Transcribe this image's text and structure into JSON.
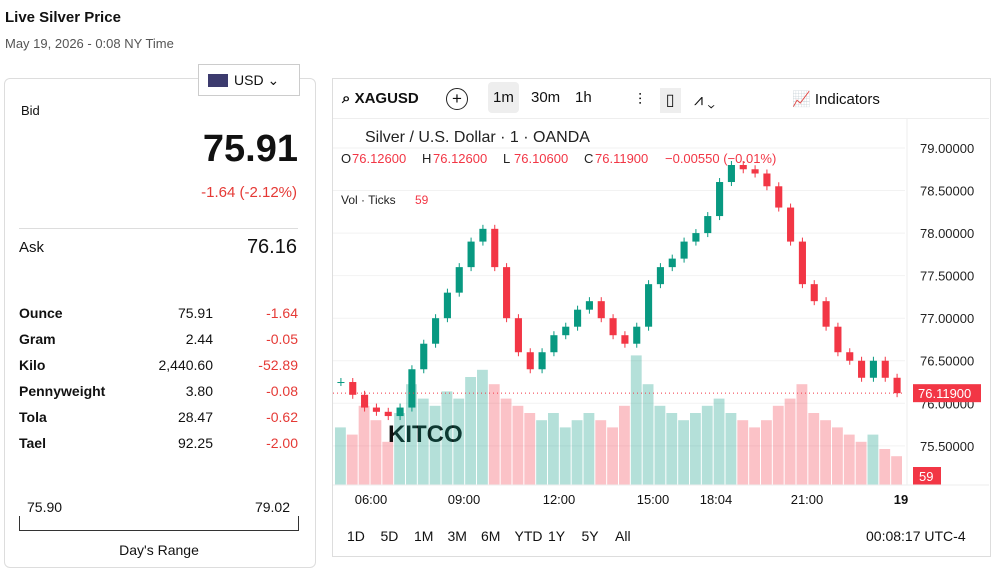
{
  "header": {
    "title": "Live Silver Price",
    "date": "May 19, 2026 - 0:08 NY Time"
  },
  "currency": "USD",
  "quote": {
    "bid_label": "Bid",
    "bid": "75.91",
    "change": "-1.64 (-2.12%)",
    "ask_label": "Ask",
    "ask": "76.16"
  },
  "units": {
    "rows": [
      [
        "Ounce",
        "75.91",
        "-1.64"
      ],
      [
        "Gram",
        "2.44",
        "-0.05"
      ],
      [
        "Kilo",
        "2,440.60",
        "-52.89"
      ],
      [
        "Pennyweight",
        "3.80",
        "-0.08"
      ],
      [
        "Tola",
        "28.47",
        "-0.62"
      ],
      [
        "Tael",
        "92.25",
        "-2.00"
      ]
    ]
  },
  "range": {
    "low": "75.90",
    "high": "79.02",
    "label": "Day's Range"
  },
  "toolbar": {
    "symbol": "XAGUSD",
    "intervals": [
      "1m",
      "30m",
      "1h"
    ],
    "indicators": "Indicators"
  },
  "chart_data": {
    "type": "candlestick",
    "title": "Silver / U.S. Dollar · 1 · OANDA",
    "ohlc": [
      {
        "key": "O",
        "value": "76.12600"
      },
      {
        "key": "H",
        "value": "76.12600"
      },
      {
        "key": "L",
        "value": "76.10600"
      },
      {
        "key": "C",
        "value": "76.11900"
      }
    ],
    "change": "−0.00550 (−0.01%)",
    "vol_label": "Vol · Ticks",
    "vol_value": "59",
    "logo": "KITCO",
    "x_labels": [
      "06:00",
      "09:00",
      "12:00",
      "15:00",
      "18:04",
      "21:00",
      "19"
    ],
    "series": [
      {
        "name": "close",
        "color": "#f23645",
        "values": [
          76.25,
          76.1,
          75.95,
          75.9,
          75.85,
          75.95,
          76.4,
          76.7,
          77.0,
          77.3,
          77.6,
          77.9,
          78.05,
          77.6,
          77.0,
          76.6,
          76.4,
          76.6,
          76.8,
          76.9,
          77.1,
          77.2,
          77.0,
          76.8,
          76.7,
          76.9,
          77.4,
          77.6,
          77.7,
          77.9,
          78.0,
          78.2,
          78.6,
          78.8,
          78.75,
          78.7,
          78.55,
          78.3,
          77.9,
          77.4,
          77.2,
          76.9,
          76.6,
          76.5,
          76.3,
          76.5,
          76.3,
          76.119
        ]
      },
      {
        "name": "volume",
        "axis": "y2",
        "color": "#089981",
        "values": [
          40,
          35,
          55,
          45,
          30,
          50,
          70,
          60,
          55,
          65,
          60,
          75,
          80,
          70,
          60,
          55,
          50,
          45,
          50,
          40,
          45,
          50,
          45,
          40,
          55,
          90,
          70,
          55,
          50,
          45,
          50,
          55,
          60,
          50,
          45,
          40,
          45,
          55,
          60,
          70,
          50,
          45,
          40,
          35,
          30,
          35,
          25,
          20
        ]
      }
    ],
    "last_price": {
      "value": 76.119,
      "label": "76.11900"
    },
    "ylim": [
      75.04,
      79.27
    ],
    "yticks": [
      {
        "value": 75.5,
        "label": "75.50000"
      },
      {
        "value": 76.0,
        "label": "76.00000"
      },
      {
        "value": 76.5,
        "label": "76.50000"
      },
      {
        "value": 77.0,
        "label": "77.00000"
      },
      {
        "value": 77.5,
        "label": "77.50000"
      },
      {
        "value": 78.0,
        "label": "78.00000"
      },
      {
        "value": 78.5,
        "label": "78.50000"
      },
      {
        "value": 79.0,
        "label": "79.00000"
      }
    ],
    "y2lim": [
      0,
      250
    ]
  },
  "periods": [
    "1D",
    "5D",
    "1M",
    "3M",
    "6M",
    "YTD",
    "1Y",
    "5Y",
    "All"
  ],
  "clock": "00:08:17 UTC-4"
}
